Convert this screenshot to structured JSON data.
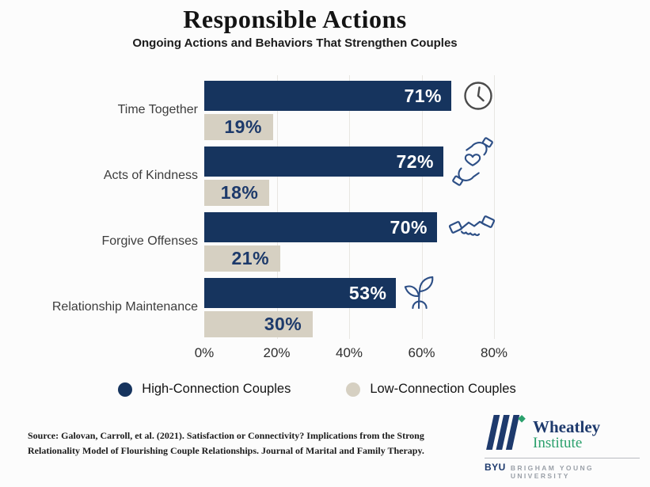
{
  "title": "Responsible Actions",
  "subtitle": "Ongoing Actions and Behaviors That Strengthen Couples",
  "chart_data": {
    "type": "bar",
    "orientation": "horizontal",
    "title": "Responsible Actions",
    "subtitle": "Ongoing Actions and Behaviors That Strengthen Couples",
    "categories": [
      "Time Together",
      "Acts of Kindness",
      "Forgive Offenses",
      "Relationship Maintenance"
    ],
    "series": [
      {
        "name": "High-Connection Couples",
        "color": "#16345e",
        "values": [
          71,
          72,
          70,
          53
        ]
      },
      {
        "name": "Low-Connection Couples",
        "color": "#d6d0c2",
        "values": [
          19,
          18,
          21,
          30
        ]
      }
    ],
    "value_suffix": "%",
    "x_ticks": [
      "0%",
      "20%",
      "40%",
      "60%",
      "80%"
    ],
    "xlim": [
      0,
      80
    ],
    "grid": "vertical-light",
    "legend_position": "bottom",
    "row_icons": [
      "clock-icon",
      "hands-holding-heart-icon",
      "handshake-icon",
      "seedling-icon"
    ]
  },
  "legend": {
    "items": [
      {
        "label": "High-Connection Couples",
        "color": "#16345e"
      },
      {
        "label": "Low-Connection Couples",
        "color": "#d6d0c2"
      }
    ]
  },
  "source_lines": [
    "Source: Galovan, Carroll, et al. (2021). Satisfaction or Connectivity? Implications from the Strong",
    "Relationality Model of Flourishing Couple Relationships. Journal of Marital and Family Therapy."
  ],
  "logo": {
    "name_line1": "Wheatley",
    "name_line2": "Institute",
    "byu": "BYU",
    "university": "BRIGHAM YOUNG UNIVERSITY",
    "navy": "#1e3a6d",
    "green": "#2aa06c"
  },
  "colors": {
    "high_connection": "#16345e",
    "low_connection": "#d6d0c2",
    "background": "#fcfcfc",
    "icon_stroke": "#2d4f86",
    "clock_stroke": "#4a4a4a",
    "gridline": "#e8e6e2"
  }
}
